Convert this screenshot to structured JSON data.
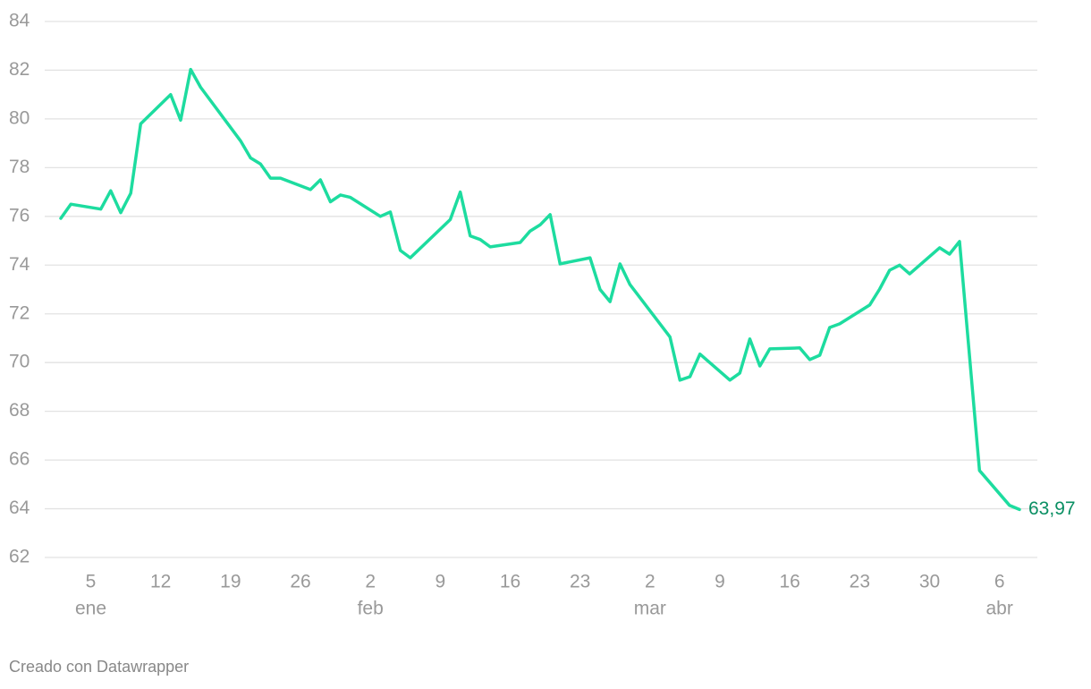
{
  "chart_data": {
    "type": "line",
    "x": [
      "01-02",
      "01-03",
      "01-06",
      "01-07",
      "01-08",
      "01-09",
      "01-10",
      "01-13",
      "01-14",
      "01-15",
      "01-16",
      "01-20",
      "01-21",
      "01-22",
      "01-23",
      "01-24",
      "01-27",
      "01-28",
      "01-29",
      "01-30",
      "01-31",
      "02-03",
      "02-04",
      "02-05",
      "02-06",
      "02-10",
      "02-11",
      "02-12",
      "02-13",
      "02-14",
      "02-17",
      "02-18",
      "02-19",
      "02-20",
      "02-21",
      "02-24",
      "02-25",
      "02-26",
      "02-27",
      "02-28",
      "03-04",
      "03-05",
      "03-06",
      "03-07",
      "03-10",
      "03-11",
      "03-12",
      "03-13",
      "03-14",
      "03-17",
      "03-18",
      "03-19",
      "03-20",
      "03-21",
      "03-24",
      "03-25",
      "03-26",
      "03-27",
      "03-28",
      "03-31",
      "04-01",
      "04-02",
      "04-04",
      "04-07",
      "04-08"
    ],
    "series": [
      {
        "color": "#1ddc9f",
        "values": [
          75.92,
          76.5,
          76.3,
          77.05,
          76.15,
          76.95,
          79.8,
          81.0,
          79.95,
          82.03,
          81.3,
          79.1,
          78.4,
          78.15,
          77.57,
          77.57,
          77.1,
          77.5,
          76.6,
          76.88,
          76.78,
          76.0,
          76.18,
          74.6,
          74.3,
          75.87,
          77.0,
          75.2,
          75.05,
          74.75,
          74.93,
          75.4,
          75.65,
          76.07,
          74.05,
          74.3,
          73.0,
          72.5,
          74.05,
          73.2,
          71.05,
          69.28,
          69.42,
          70.35,
          69.28,
          69.57,
          70.97,
          69.86,
          70.56,
          70.6,
          70.12,
          70.3,
          71.44,
          71.59,
          72.36,
          73.02,
          73.79,
          74.0,
          73.64,
          74.71,
          74.45,
          74.97,
          65.57,
          64.14,
          63.97
        ],
        "value_labels": [
          null,
          null,
          null,
          null,
          null,
          null,
          null,
          null,
          null,
          null,
          null,
          null,
          null,
          null,
          null,
          null,
          null,
          null,
          null,
          null,
          null,
          null,
          null,
          null,
          null,
          null,
          null,
          null,
          null,
          null,
          null,
          null,
          null,
          null,
          null,
          null,
          null,
          null,
          null,
          null,
          null,
          null,
          null,
          null,
          null,
          null,
          null,
          null,
          null,
          null,
          null,
          null,
          null,
          null,
          null,
          null,
          null,
          null,
          null,
          null,
          null,
          null,
          null,
          null,
          "63,97"
        ],
        "label_color": "#0a8f63"
      }
    ],
    "xlim": [
      "01-02",
      "04-08"
    ],
    "xticks": [
      {
        "value": "01-05",
        "label": "5"
      },
      {
        "value": "01-12",
        "label": "12"
      },
      {
        "value": "01-19",
        "label": "19"
      },
      {
        "value": "01-26",
        "label": "26"
      },
      {
        "value": "02-02",
        "label": "2"
      },
      {
        "value": "02-09",
        "label": "9"
      },
      {
        "value": "02-16",
        "label": "16"
      },
      {
        "value": "02-23",
        "label": "23"
      },
      {
        "value": "03-02",
        "label": "2"
      },
      {
        "value": "03-09",
        "label": "9"
      },
      {
        "value": "03-16",
        "label": "16"
      },
      {
        "value": "03-23",
        "label": "23"
      },
      {
        "value": "03-30",
        "label": "30"
      },
      {
        "value": "04-06",
        "label": "6"
      }
    ],
    "month_labels": [
      {
        "value": "01-05",
        "label": "ene"
      },
      {
        "value": "02-02",
        "label": "feb"
      },
      {
        "value": "03-02",
        "label": "mar"
      },
      {
        "value": "04-06",
        "label": "abr"
      }
    ],
    "ylim": [
      62,
      84
    ],
    "yticks": [
      62,
      64,
      66,
      68,
      70,
      72,
      74,
      76,
      78,
      80,
      82,
      84
    ],
    "grid": true,
    "credit": "Creado con Datawrapper"
  }
}
